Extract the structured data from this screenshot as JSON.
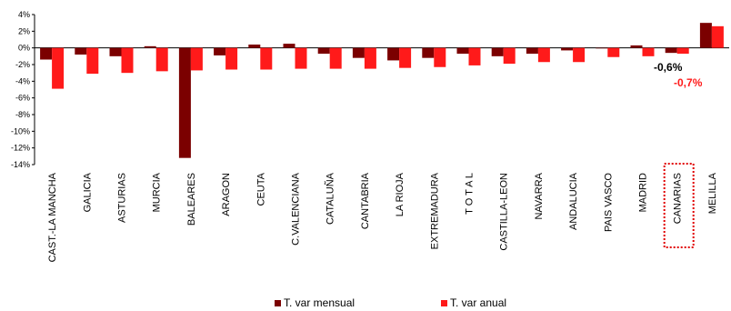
{
  "chart_data": {
    "type": "bar",
    "categories": [
      "CAST.-LA MANCHA",
      "GALICIA",
      "ASTURIAS",
      "MURCIA",
      "BALEARES",
      "ARAGON",
      "CEUTA",
      "C.VALENCIANA",
      "CATALUÑA",
      "CANTABRIA",
      "LA RIOJA",
      "EXTREMADURA",
      "T O T A L",
      "CASTILLA-LEON",
      "NAVARRA",
      "ANDALUCIA",
      "PAIS VASCO",
      "MADRID",
      "CANARIAS",
      "MELILLA"
    ],
    "series": [
      {
        "name": "T. var mensual",
        "color": "#7B0000",
        "values": [
          -1.4,
          -0.8,
          -1.0,
          0.2,
          -13.2,
          -0.9,
          0.4,
          0.5,
          -0.7,
          -1.2,
          -1.5,
          -1.2,
          -0.7,
          -1.0,
          -0.7,
          -0.3,
          0.0,
          0.3,
          -0.6,
          3.0
        ]
      },
      {
        "name": "T. var anual",
        "color": "#FF1A1A",
        "values": [
          -4.9,
          -3.1,
          -3.0,
          -2.8,
          -2.7,
          -2.6,
          -2.6,
          -2.5,
          -2.5,
          -2.5,
          -2.4,
          -2.3,
          -2.1,
          -1.9,
          -1.7,
          -1.7,
          -1.1,
          -1.0,
          -0.7,
          2.6
        ]
      }
    ],
    "ylim": [
      -14,
      4
    ],
    "yticks": [
      4,
      2,
      0,
      -2,
      -4,
      -6,
      -8,
      -10,
      -12,
      -14
    ],
    "ytick_format": "percent",
    "grid": false,
    "legend_position": "bottom",
    "highlight": {
      "category": "CANARIAS",
      "style": "dotted red box",
      "labels": [
        {
          "series": "T. var mensual",
          "text": "-0,6%",
          "color": "#000000"
        },
        {
          "series": "T. var anual",
          "text": "-0,7%",
          "color": "#FF1A1A"
        }
      ]
    }
  },
  "legend": {
    "mensual_label": "T. var mensual",
    "anual_label": "T. var anual"
  }
}
